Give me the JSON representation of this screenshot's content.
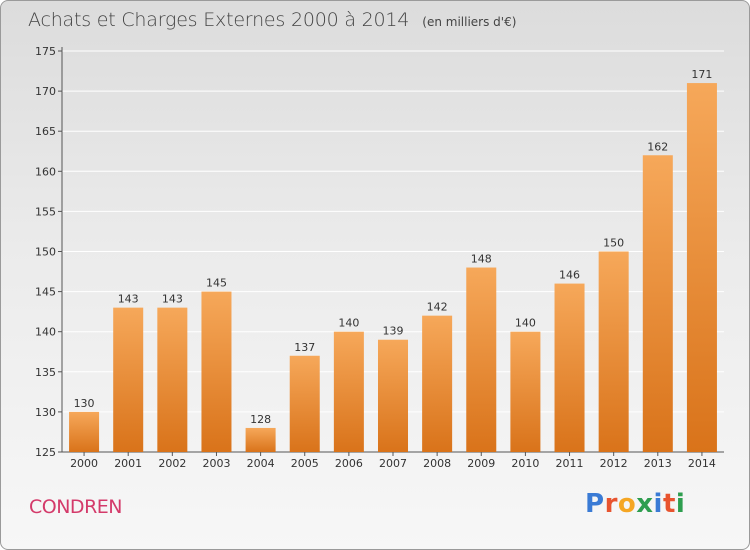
{
  "header": {
    "title": "Achats et Charges Externes 2000 à 2014",
    "subtitle": "(en milliers d'€)"
  },
  "footer": {
    "commune": "CONDREN",
    "logo_letters": [
      "P",
      "r",
      "o",
      "x",
      "i",
      "t",
      "i"
    ],
    "logo_colors": [
      "#3a7bd5",
      "#e8542f",
      "#f5a623",
      "#2e9e4f",
      "#3a7bd5",
      "#e8542f",
      "#2e9e4f"
    ]
  },
  "colors": {
    "bar_top": "#f6a85a",
    "bar_bottom": "#d9731a",
    "grid": "#ffffff",
    "axis": "#555555"
  },
  "chart_data": {
    "type": "bar",
    "categories": [
      "2000",
      "2001",
      "2002",
      "2003",
      "2004",
      "2005",
      "2006",
      "2007",
      "2008",
      "2009",
      "2010",
      "2011",
      "2012",
      "2013",
      "2014"
    ],
    "values": [
      130,
      143,
      143,
      145,
      128,
      137,
      140,
      139,
      142,
      148,
      140,
      146,
      150,
      162,
      171
    ],
    "title": "Achats et Charges Externes 2000 à 2014",
    "xlabel": "",
    "ylabel": "",
    "ylim": [
      125,
      175
    ],
    "yticks": [
      125,
      130,
      135,
      140,
      145,
      150,
      155,
      160,
      165,
      170,
      175
    ],
    "grid": true
  }
}
